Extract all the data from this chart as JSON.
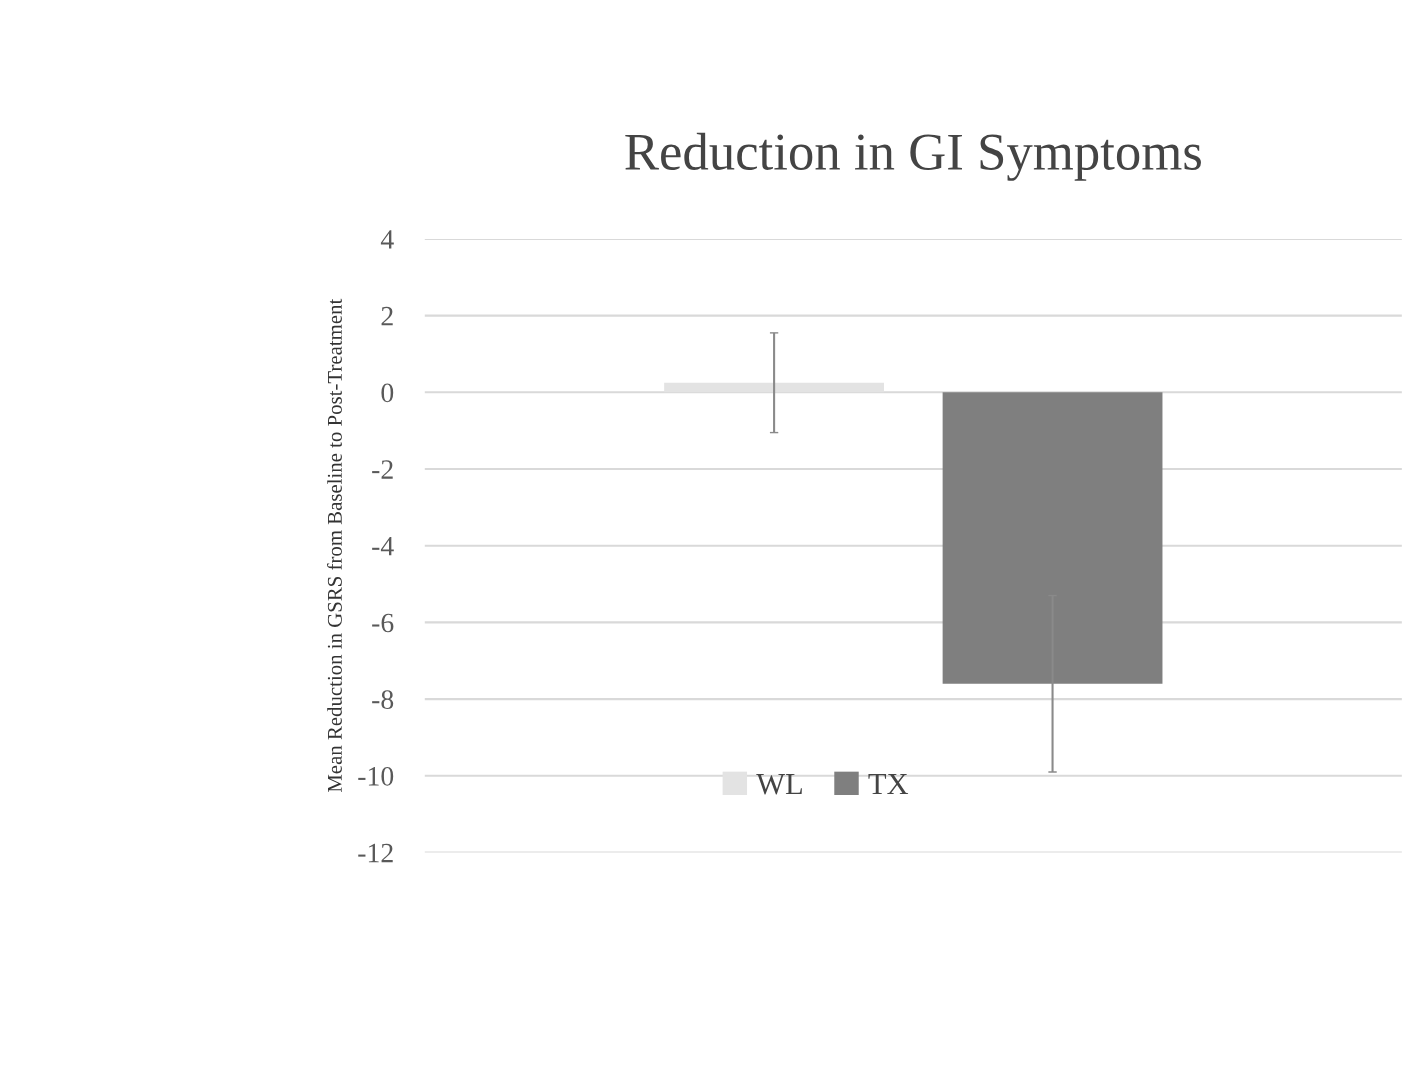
{
  "chart_data": {
    "type": "bar",
    "title": "Reduction in GI Symptoms",
    "ylabel": "Mean Reduction in GSRS from Baseline to Post-Treatment",
    "categories": [
      null
    ],
    "series": [
      {
        "name": "WL",
        "color": "#e3e3e3",
        "values": [
          0.25
        ],
        "errors": [
          1.3
        ]
      },
      {
        "name": "TX",
        "color": "#7f7f7f",
        "values": [
          -7.6
        ],
        "errors": [
          2.3
        ]
      }
    ],
    "ylim": [
      -12,
      4
    ],
    "yticks": [
      -12,
      -10,
      -8,
      -6,
      -4,
      -2,
      0,
      2,
      4
    ],
    "grid": "y",
    "legend": "bottom"
  }
}
